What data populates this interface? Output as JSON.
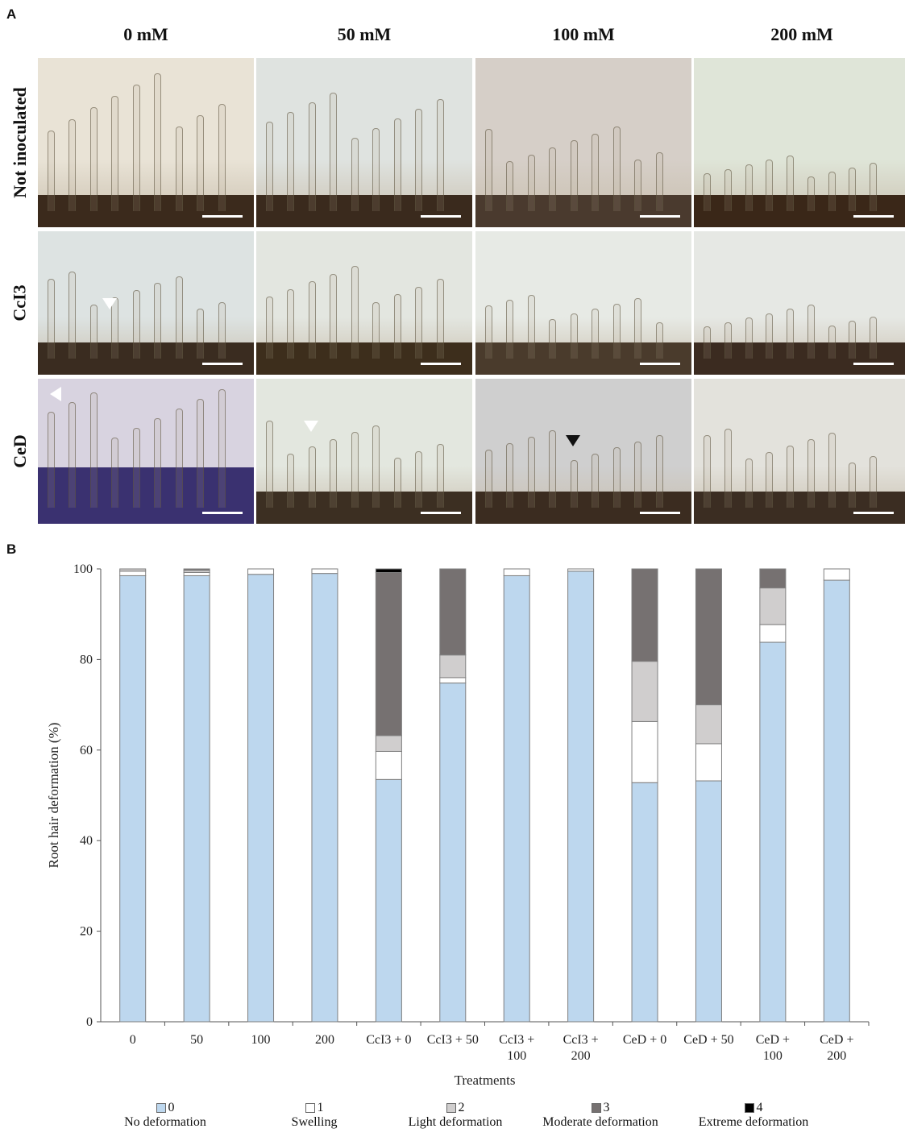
{
  "panels": {
    "a": "A",
    "b": "B"
  },
  "columns": [
    "0 mM",
    "50 mM",
    "100 mM",
    "200 mM"
  ],
  "rows": [
    "Not inoculated",
    "CcI3",
    "CeD"
  ],
  "chart_data": {
    "type": "bar",
    "stacked": true,
    "xlabel": "Treatments",
    "ylabel": "Root hair deformation (%)",
    "ylim": [
      0,
      100
    ],
    "yticks": [
      0,
      20,
      40,
      60,
      80,
      100
    ],
    "categories": [
      [
        "0"
      ],
      [
        "50"
      ],
      [
        "100"
      ],
      [
        "200"
      ],
      [
        "CcI3 + 0"
      ],
      [
        "CcI3 + 50"
      ],
      [
        "CcI3 +",
        "100"
      ],
      [
        "CcI3 +",
        "200"
      ],
      [
        "CeD + 0"
      ],
      [
        "CeD + 50"
      ],
      [
        "CeD +",
        "100"
      ],
      [
        "CeD +",
        "200"
      ]
    ],
    "series": [
      {
        "name": "0",
        "label": "No deformation",
        "color": "#bdd7ee",
        "values": [
          98.5,
          98.5,
          98.8,
          99.0,
          53.5,
          74.8,
          98.5,
          99.5,
          52.8,
          53.2,
          83.8,
          97.5
        ]
      },
      {
        "name": "1",
        "label": "Swelling",
        "color": "#ffffff",
        "values": [
          1.0,
          0.7,
          1.2,
          1.0,
          6.2,
          1.2,
          1.5,
          0.5,
          13.5,
          8.2,
          3.9,
          2.5
        ]
      },
      {
        "name": "2",
        "label": "Light deformation",
        "color": "#d0cece",
        "values": [
          0.5,
          0.5,
          0.0,
          0.0,
          3.5,
          5.0,
          0.0,
          0.0,
          13.3,
          8.6,
          8.1,
          0.0
        ]
      },
      {
        "name": "3",
        "label": "Moderate deformation",
        "color": "#767171",
        "values": [
          0.0,
          0.3,
          0.0,
          0.0,
          36.0,
          19.0,
          0.0,
          0.0,
          20.4,
          30.0,
          4.2,
          0.0
        ]
      },
      {
        "name": "4",
        "label": "Extreme deformation",
        "color": "#000000",
        "values": [
          0.0,
          0.0,
          0.0,
          0.0,
          0.8,
          0.0,
          0.0,
          0.0,
          0.0,
          0.0,
          0.0,
          0.0
        ]
      }
    ]
  }
}
